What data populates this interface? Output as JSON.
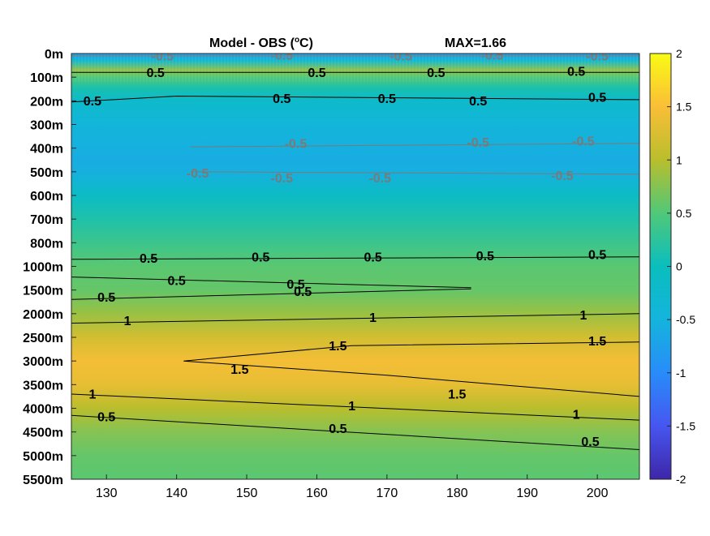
{
  "chart_data": {
    "type": "heatmap",
    "title_left": "Model - OBS (",
    "title_degree": "o",
    "title_unit": "C)",
    "title_right": "MAX=1.66",
    "x": {
      "min": 125,
      "max": 206,
      "ticks": [
        130,
        140,
        150,
        160,
        170,
        180,
        190,
        200
      ]
    },
    "y": {
      "tick_labels": [
        "0m",
        "100m",
        "200m",
        "300m",
        "400m",
        "500m",
        "600m",
        "700m",
        "800m",
        "1000m",
        "1500m",
        "2000m",
        "2500m",
        "3000m",
        "3500m",
        "4000m",
        "4500m",
        "5000m",
        "5500m"
      ]
    },
    "colorbar": {
      "min": -2,
      "max": 2,
      "ticks": [
        "2",
        "1.5",
        "1",
        "0.5",
        "0",
        "-0.5",
        "-1",
        "-1.5",
        "-2"
      ],
      "colormap": "parula"
    },
    "field_profile": {
      "level_index": [
        0,
        0.3,
        0.7,
        1.0,
        1.5,
        2,
        3,
        4,
        4.5,
        5,
        6,
        7,
        8,
        9,
        10,
        11,
        12,
        13,
        14,
        15,
        16,
        17,
        18
      ],
      "value": [
        -0.8,
        -0.3,
        0.8,
        0.5,
        0.1,
        -0.2,
        -0.45,
        -0.55,
        -0.6,
        -0.55,
        -0.1,
        0.15,
        0.35,
        0.55,
        0.6,
        0.85,
        1.2,
        1.45,
        1.35,
        1.0,
        0.75,
        0.6,
        0.55
      ]
    },
    "contours": [
      {
        "value": 0.5,
        "label": "0.5",
        "line": "black",
        "x": [
          125,
          206
        ],
        "y": [
          0.8,
          0.8
        ],
        "labels_at": [
          [
            137,
            0.85
          ],
          [
            160,
            0.85
          ],
          [
            177,
            0.85
          ],
          [
            197,
            0.8
          ]
        ]
      },
      {
        "value": 0.5,
        "label": "0.5",
        "line": "black",
        "x": [
          125,
          140,
          206
        ],
        "y": [
          2.05,
          1.8,
          1.95
        ],
        "labels_at": [
          [
            128,
            2.05
          ],
          [
            155,
            1.95
          ],
          [
            170,
            1.95
          ],
          [
            183,
            2.05
          ],
          [
            200,
            1.9
          ]
        ]
      },
      {
        "value": 0.5,
        "label": "0.5",
        "line": "black",
        "x": [
          125,
          206
        ],
        "y": [
          8.7,
          8.6
        ],
        "labels_at": [
          [
            136,
            8.7
          ],
          [
            152,
            8.65
          ],
          [
            168,
            8.65
          ],
          [
            184,
            8.6
          ],
          [
            200,
            8.55
          ]
        ]
      },
      {
        "value": 0.5,
        "label": "0.5",
        "line": "black",
        "x": [
          125,
          182
        ],
        "y": [
          9.45,
          9.9
        ],
        "labels_at": [
          [
            140,
            9.65
          ],
          [
            157,
            9.8
          ]
        ]
      },
      {
        "value": 0.5,
        "label": "0.5",
        "line": "black",
        "x": [
          125,
          182
        ],
        "y": [
          10.4,
          9.95
        ],
        "labels_at": [
          [
            130,
            10.35
          ],
          [
            158,
            10.1
          ]
        ]
      },
      {
        "value": 1,
        "label": "1",
        "line": "black",
        "x": [
          125,
          206
        ],
        "y": [
          11.4,
          11.0
        ],
        "labels_at": [
          [
            133,
            11.35
          ],
          [
            168,
            11.2
          ],
          [
            198,
            11.1
          ]
        ]
      },
      {
        "value": 1.5,
        "label": "1.5",
        "line": "black",
        "x": [
          206,
          165,
          141,
          170,
          206
        ],
        "y": [
          12.2,
          12.35,
          13.0,
          13.6,
          14.5
        ],
        "labels_at": [
          [
            163,
            12.4
          ],
          [
            149,
            13.4
          ],
          [
            180,
            14.45
          ],
          [
            200,
            12.2
          ]
        ]
      },
      {
        "value": 1,
        "label": "1",
        "line": "black",
        "x": [
          125,
          206
        ],
        "y": [
          14.4,
          15.5
        ],
        "labels_at": [
          [
            128,
            14.45
          ],
          [
            165,
            14.95
          ],
          [
            197,
            15.3
          ]
        ]
      },
      {
        "value": 0.5,
        "label": "0.5",
        "line": "black",
        "x": [
          125,
          206
        ],
        "y": [
          15.3,
          16.75
        ],
        "labels_at": [
          [
            130,
            15.4
          ],
          [
            163,
            15.9
          ],
          [
            199,
            16.45
          ]
        ]
      },
      {
        "value": -0.5,
        "label": "-0.5",
        "line": "gray",
        "x": [
          125,
          206
        ],
        "y": [
          0.1,
          0.1
        ],
        "labels_at": [
          [
            138,
            0.15
          ],
          [
            155,
            0.12
          ],
          [
            172,
            0.15
          ],
          [
            185,
            0.12
          ],
          [
            200,
            0.15
          ]
        ]
      },
      {
        "value": -0.5,
        "label": "-0.5",
        "line": "gray",
        "x": [
          142,
          206
        ],
        "y": [
          3.95,
          3.8
        ],
        "labels_at": [
          [
            157,
            3.85
          ],
          [
            183,
            3.8
          ],
          [
            198,
            3.75
          ]
        ]
      },
      {
        "value": -0.5,
        "label": "-0.5",
        "line": "gray",
        "x": [
          142,
          206
        ],
        "y": [
          5.0,
          5.1
        ],
        "labels_at": [
          [
            143,
            5.1
          ],
          [
            155,
            5.3
          ],
          [
            169,
            5.3
          ],
          [
            195,
            5.2
          ]
        ]
      }
    ]
  }
}
